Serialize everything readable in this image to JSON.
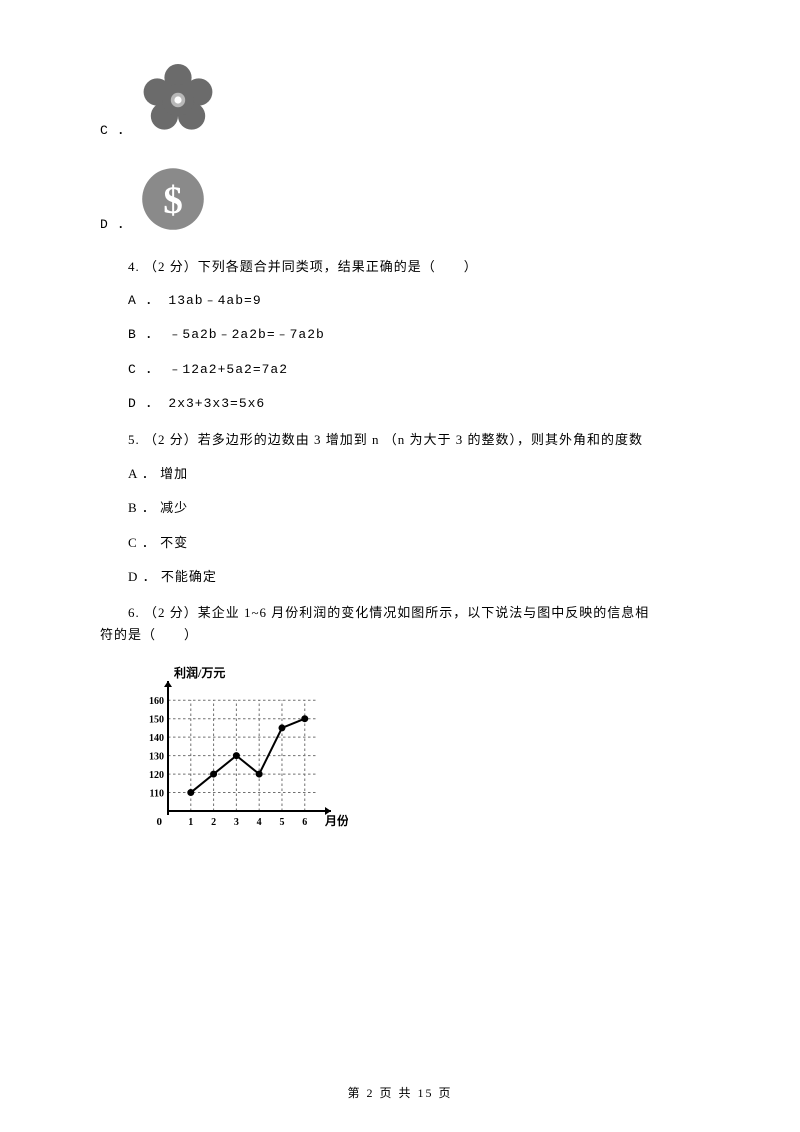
{
  "option_c": {
    "label": "C ．"
  },
  "option_d": {
    "label": "D ．"
  },
  "q4": {
    "text": "4. （2 分）下列各题合并同类项，结果正确的是（　　）",
    "a": "A ． 13ab﹣4ab=9",
    "b": "B ． ﹣5a2b﹣2a2b=﹣7a2b",
    "c": "C ． ﹣12a2+5a2=7a2",
    "d": "D ． 2x3+3x3=5x6"
  },
  "q5": {
    "text": "5. （2 分）若多边形的边数由 3 增加到 n （n 为大于 3 的整数），则其外角和的度数",
    "a": "A ． 增加",
    "b": "B ． 减少",
    "c": "C ． 不变",
    "d": "D ． 不能确定"
  },
  "q6": {
    "line1": "6. （2 分）某企业 1~6 月份利润的变化情况如图所示，以下说法与图中反映的信息相",
    "line2": "符的是（　　）"
  },
  "chart": {
    "y_label": "利润/万元",
    "x_label": "月份",
    "y_ticks": [
      110,
      120,
      130,
      140,
      150,
      160
    ],
    "x_ticks": [
      1,
      2,
      3,
      4,
      5,
      6
    ],
    "points": [
      [
        1,
        110
      ],
      [
        2,
        120
      ],
      [
        3,
        130
      ],
      [
        4,
        120
      ],
      [
        5,
        145
      ],
      [
        6,
        150
      ]
    ],
    "axis_color": "#000000",
    "grid_color": "#707070",
    "point_color": "#000000",
    "line_color": "#000000",
    "bg": "#ffffff"
  },
  "footer": "第 2 页 共 15 页",
  "colors": {
    "flower": "#6b6b6b",
    "flower_center_ring": "#b8b8b8",
    "flower_center_hole": "#ffffff",
    "dollar_bg": "#8a8a8a",
    "dollar_fg": "#ffffff"
  }
}
